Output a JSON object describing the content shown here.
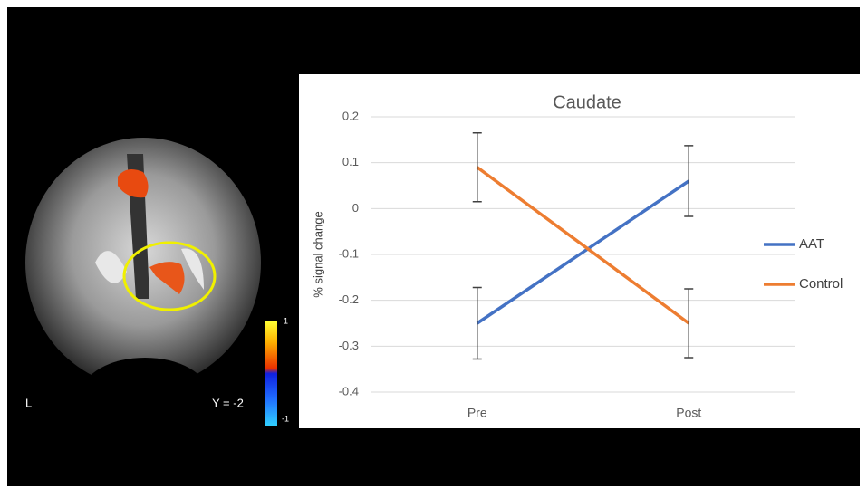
{
  "brain_panel": {
    "side_label": "L",
    "slice_label": "Y = -2",
    "colorbar_ticks": [
      1,
      -1
    ]
  },
  "chart_data": {
    "type": "line",
    "title": "Caudate",
    "y_label": "% signal change",
    "categories": [
      "Pre",
      "Post"
    ],
    "series": [
      {
        "name": "AAT",
        "color": "#4472c4",
        "values": [
          -0.25,
          0.06
        ],
        "errors": [
          0.078,
          0.077
        ]
      },
      {
        "name": "Control",
        "color": "#ed7d31",
        "values": [
          0.09,
          -0.25
        ],
        "errors": [
          0.075,
          0.075
        ]
      }
    ],
    "ylim": [
      -0.4,
      0.2
    ],
    "yticks": [
      0.2,
      0.1,
      0,
      -0.1,
      -0.2,
      -0.3,
      -0.4
    ],
    "grid": true,
    "legend": "right"
  }
}
